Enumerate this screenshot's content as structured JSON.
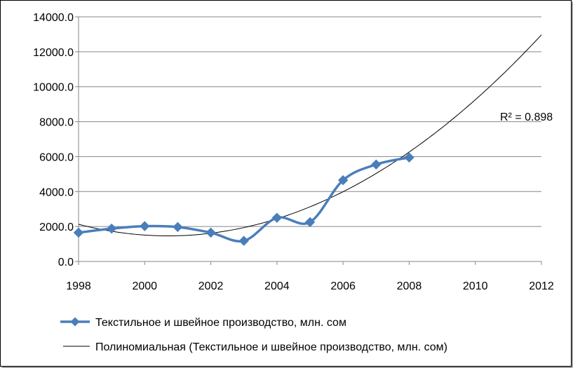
{
  "chart_data": {
    "type": "line",
    "title": "",
    "xlabel": "",
    "ylabel": "",
    "xlim": [
      1998,
      2012
    ],
    "ylim": [
      0,
      14000
    ],
    "x_ticks": [
      "1998",
      "2000",
      "2002",
      "2004",
      "2006",
      "2008",
      "2010",
      "2012"
    ],
    "y_ticks": [
      "0.0",
      "2000.0",
      "4000.0",
      "6000.0",
      "8000.0",
      "10000.0",
      "12000.0",
      "14000.0"
    ],
    "grid": "horizontal",
    "legend_position": "bottom",
    "series": [
      {
        "name": "Текстильное и швейное производство, млн. сом",
        "color": "#4a7ebb",
        "marker": "diamond",
        "smooth": true,
        "x": [
          1998,
          1999,
          2000,
          2001,
          2002,
          2003,
          2004,
          2005,
          2006,
          2007,
          2008
        ],
        "y": [
          1650,
          1880,
          2020,
          1970,
          1650,
          1180,
          2500,
          2250,
          4650,
          5550,
          5950
        ]
      }
    ],
    "trendline": {
      "name": "Полиномиальная (Текстильное и швейное производство, млн. сом)",
      "type": "polynomial",
      "color": "#000000",
      "x_range": [
        1998,
        2012
      ],
      "annotation": "R² = 0.898"
    }
  }
}
